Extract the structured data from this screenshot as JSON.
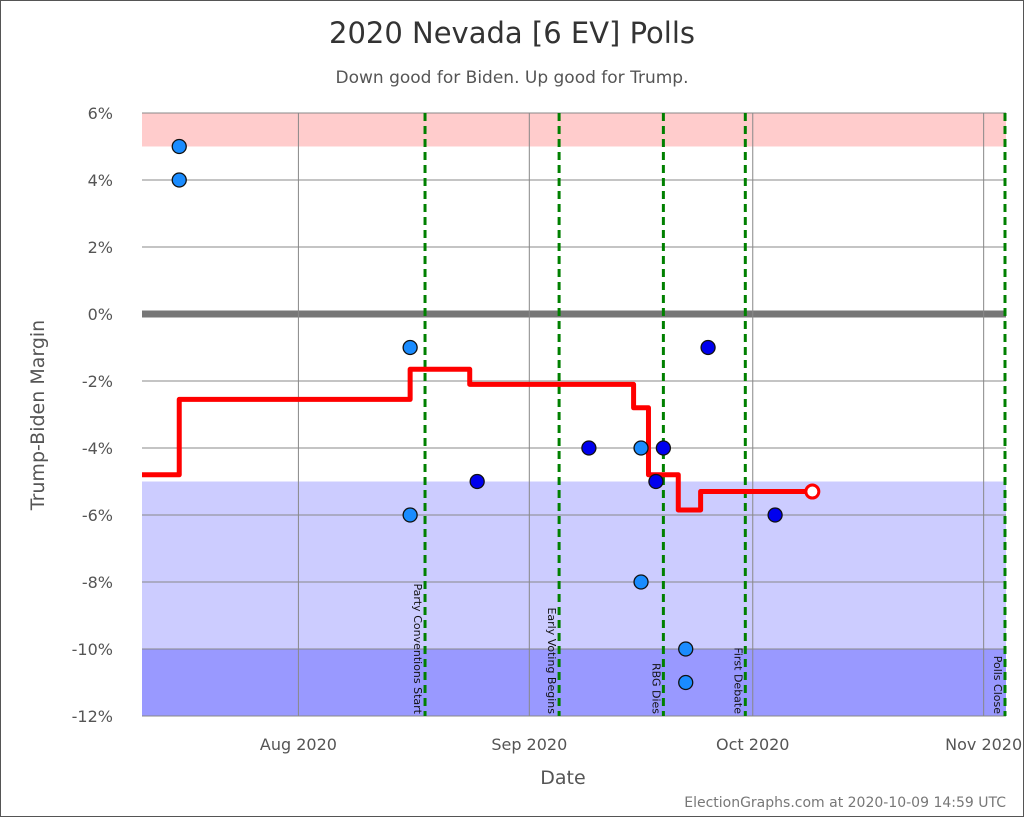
{
  "chart_data": {
    "type": "scatter",
    "title": "2020 Nevada [6 EV] Polls",
    "subtitle": "Down good for Biden. Up good for Trump.",
    "xlabel": "Date",
    "ylabel": "Trump-Biden Margin",
    "xlim": [
      "2020-07-11",
      "2020-11-04"
    ],
    "ylim": [
      -12,
      6
    ],
    "grid": true,
    "x_ticks": [
      {
        "date": "2020-08-01",
        "label": "Aug 2020"
      },
      {
        "date": "2020-09-01",
        "label": "Sep 2020"
      },
      {
        "date": "2020-10-01",
        "label": "Oct 2020"
      },
      {
        "date": "2020-11-01",
        "label": "Nov 2020"
      }
    ],
    "y_ticks": [
      {
        "value": 6,
        "label": "6%"
      },
      {
        "value": 4,
        "label": "4%"
      },
      {
        "value": 2,
        "label": "2%"
      },
      {
        "value": 0,
        "label": "0%"
      },
      {
        "value": -2,
        "label": "-2%"
      },
      {
        "value": -4,
        "label": "-4%"
      },
      {
        "value": -6,
        "label": "-6%"
      },
      {
        "value": -8,
        "label": "-8%"
      },
      {
        "value": -10,
        "label": "-10%"
      },
      {
        "value": -12,
        "label": "-12%"
      }
    ],
    "bands": [
      {
        "from": 5,
        "to": 6,
        "color": "#ffcccc"
      },
      {
        "from": -10,
        "to": -5,
        "color": "#ccccff"
      },
      {
        "from": -12,
        "to": -10,
        "color": "#9999ff"
      }
    ],
    "colors": {
      "poll_light": "#1a8cff",
      "poll_dark": "#0000ee",
      "average": "#ff0000",
      "event": "#008000",
      "zero": "#777777"
    },
    "polls": [
      {
        "date": "2020-07-16",
        "value": 5,
        "shade": "light"
      },
      {
        "date": "2020-07-16",
        "value": 4,
        "shade": "light"
      },
      {
        "date": "2020-08-16",
        "value": -1,
        "shade": "light"
      },
      {
        "date": "2020-08-16",
        "value": -6,
        "shade": "light"
      },
      {
        "date": "2020-08-25",
        "value": -5,
        "shade": "dark"
      },
      {
        "date": "2020-09-09",
        "value": -4,
        "shade": "dark"
      },
      {
        "date": "2020-09-16",
        "value": -4,
        "shade": "light"
      },
      {
        "date": "2020-09-16",
        "value": -8,
        "shade": "light"
      },
      {
        "date": "2020-09-18",
        "value": -5,
        "shade": "dark"
      },
      {
        "date": "2020-09-19",
        "value": -4,
        "shade": "dark"
      },
      {
        "date": "2020-09-22",
        "value": -10,
        "shade": "light"
      },
      {
        "date": "2020-09-22",
        "value": -11,
        "shade": "light"
      },
      {
        "date": "2020-09-25",
        "value": -1,
        "shade": "dark"
      },
      {
        "date": "2020-10-04",
        "value": -6,
        "shade": "dark"
      }
    ],
    "average": [
      {
        "date": "2020-07-11",
        "value": -4.8
      },
      {
        "date": "2020-07-16",
        "value": -2.55
      },
      {
        "date": "2020-08-16",
        "value": -1.65
      },
      {
        "date": "2020-08-24",
        "value": -2.1
      },
      {
        "date": "2020-09-15",
        "value": -2.8
      },
      {
        "date": "2020-09-17",
        "value": -4.8
      },
      {
        "date": "2020-09-21",
        "value": -5.85
      },
      {
        "date": "2020-09-24",
        "value": -5.3
      },
      {
        "date": "2020-10-09",
        "value": -5.3
      }
    ],
    "events": [
      {
        "date": "2020-08-18",
        "label": "Party Conventions Start"
      },
      {
        "date": "2020-09-05",
        "label": "Early Voting Begins"
      },
      {
        "date": "2020-09-19",
        "label": "RBG Dies"
      },
      {
        "date": "2020-09-30",
        "label": "First Debate"
      },
      {
        "date": "2020-11-04",
        "label": "Polls Close"
      }
    ]
  },
  "credit": "ElectionGraphs.com at 2020-10-09 14:59 UTC"
}
